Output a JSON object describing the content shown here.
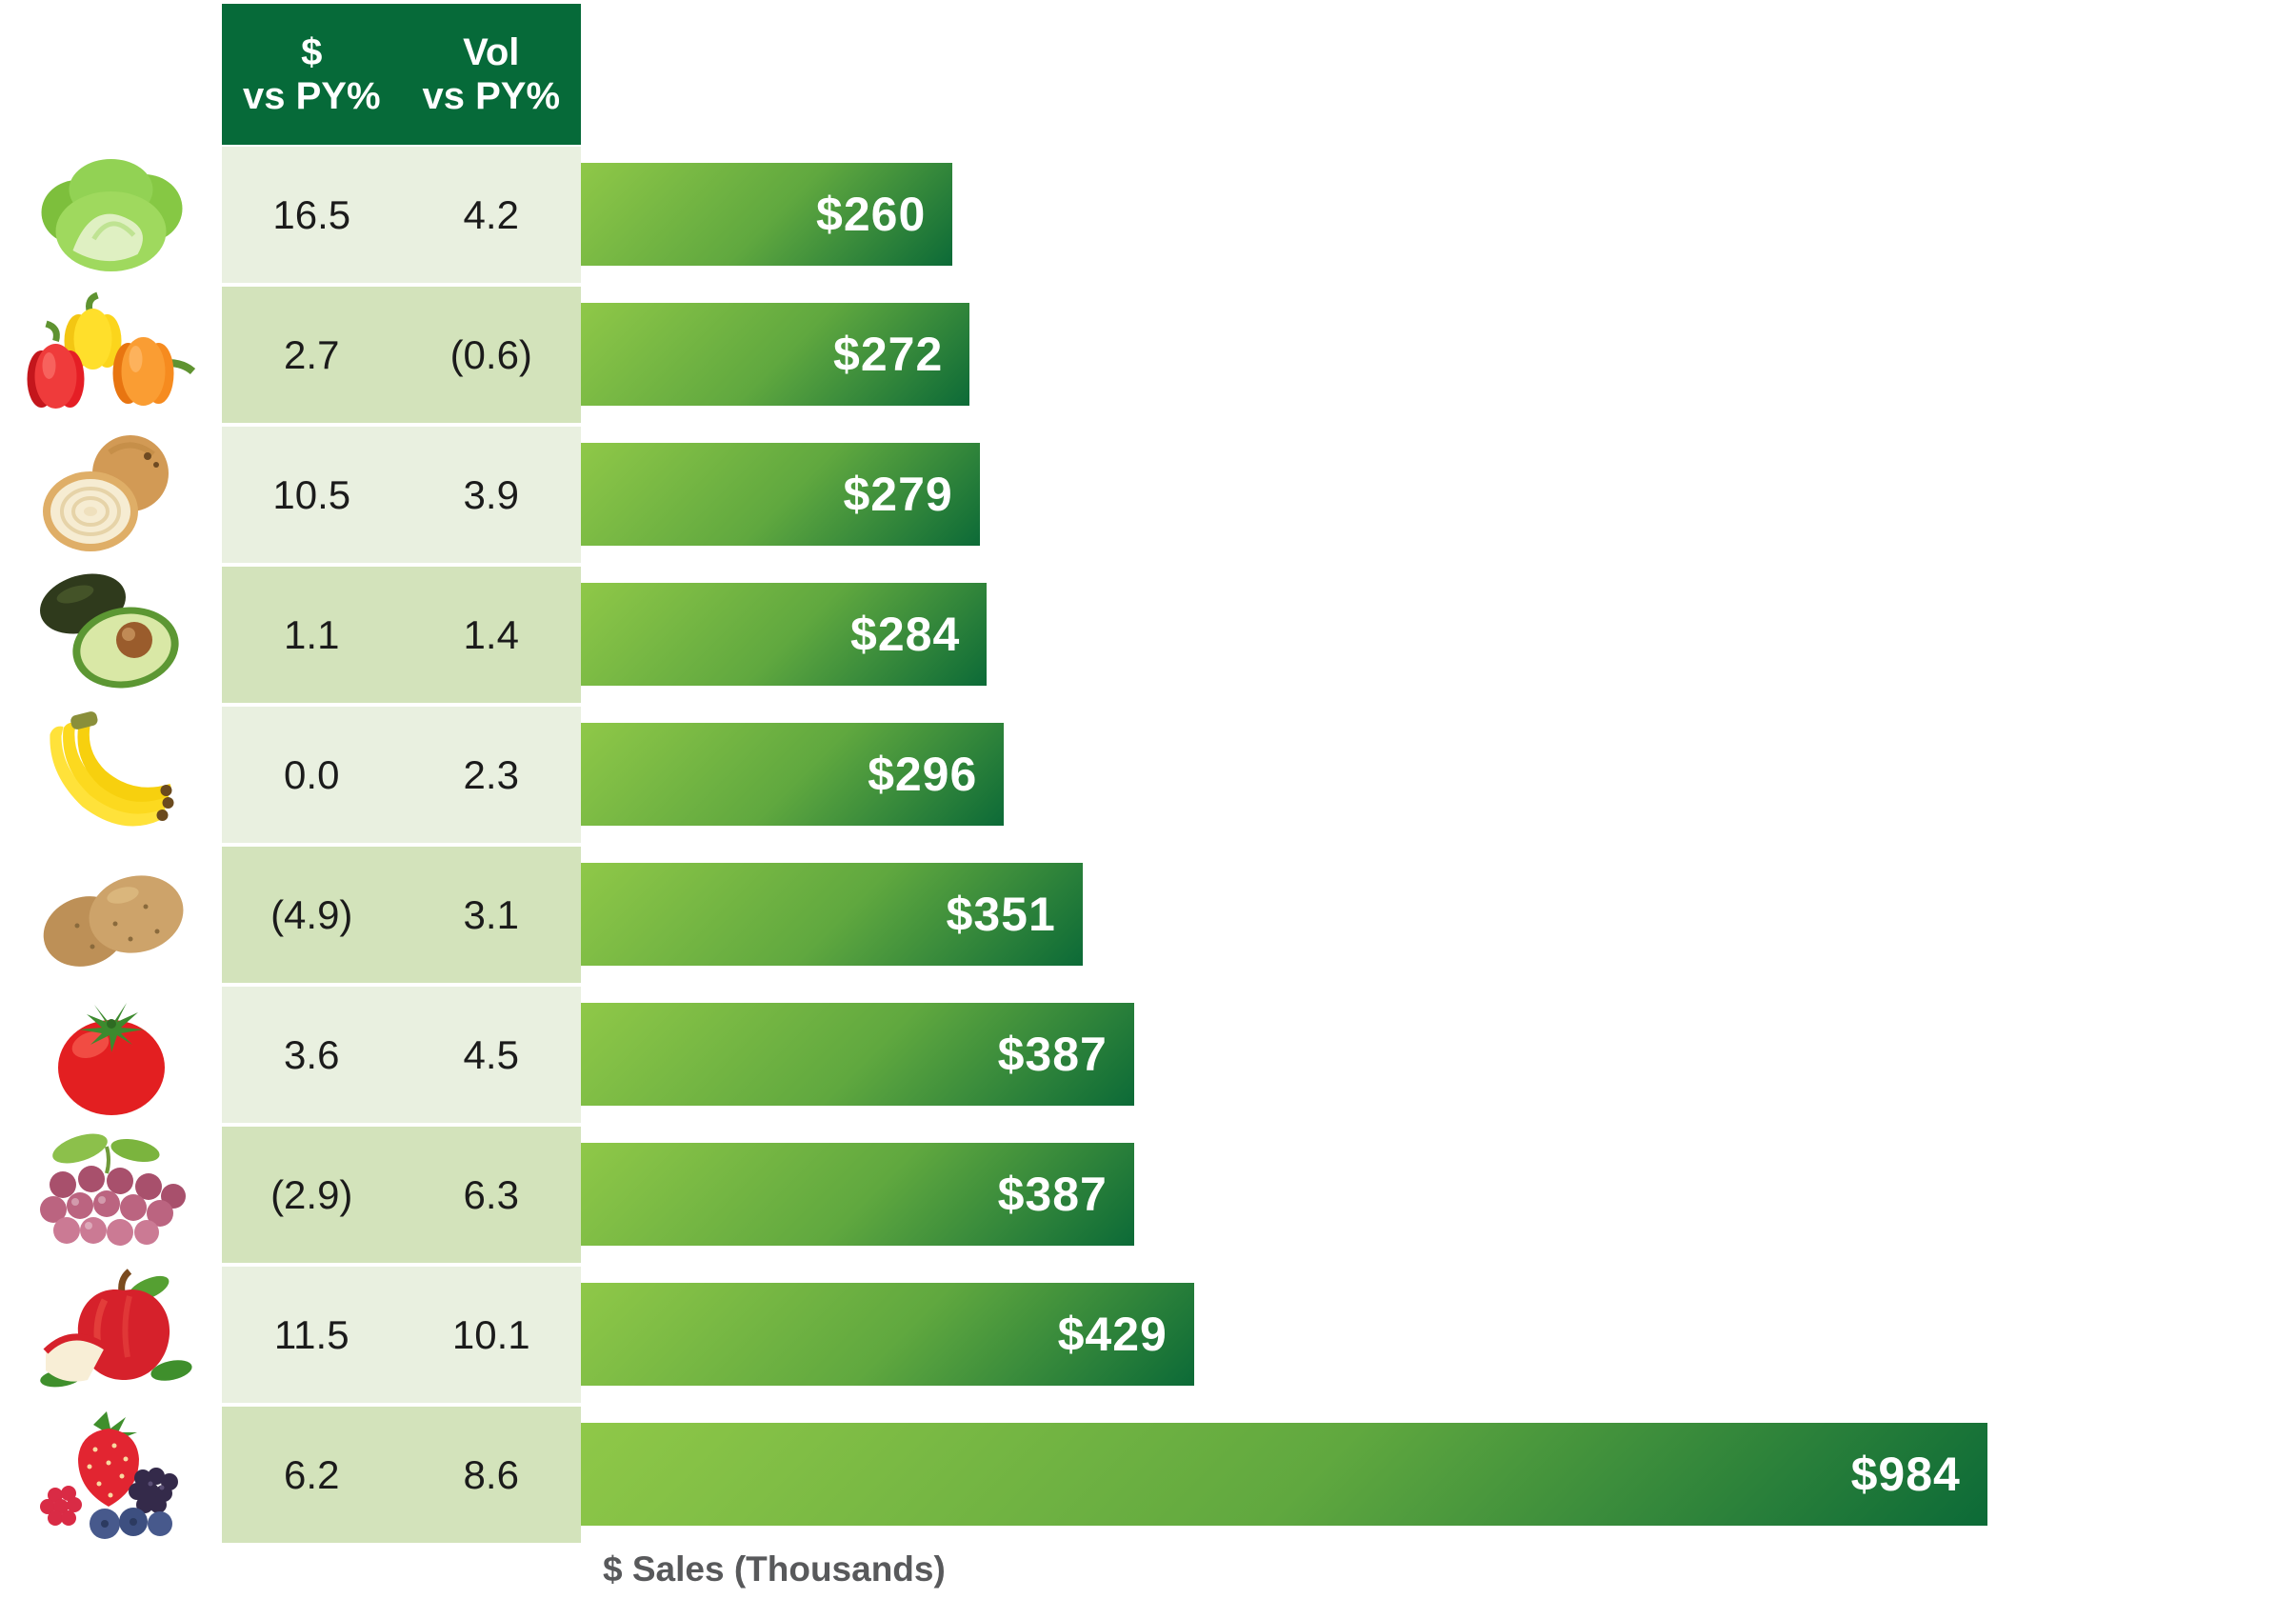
{
  "table": {
    "header": {
      "dollar_col": "$\nvs PY%",
      "vol_col": "Vol\nvs PY%"
    }
  },
  "axis": {
    "xlabel": "$ Sales (Thousands)"
  },
  "rows": [
    {
      "item": "lettuce",
      "icon": "lettuce-icon",
      "dollar_vs_py": "16.5",
      "vol_vs_py": "4.2",
      "sales_label": "$260",
      "sales_value": 260
    },
    {
      "item": "bell-peppers",
      "icon": "bell-peppers-icon",
      "dollar_vs_py": "2.7",
      "vol_vs_py": "(0.6)",
      "sales_label": "$272",
      "sales_value": 272
    },
    {
      "item": "onions",
      "icon": "onion-icon",
      "dollar_vs_py": "10.5",
      "vol_vs_py": "3.9",
      "sales_label": "$279",
      "sales_value": 279
    },
    {
      "item": "avocados",
      "icon": "avocado-icon",
      "dollar_vs_py": "1.1",
      "vol_vs_py": "1.4",
      "sales_label": "$284",
      "sales_value": 284
    },
    {
      "item": "bananas",
      "icon": "banana-icon",
      "dollar_vs_py": "0.0",
      "vol_vs_py": "2.3",
      "sales_label": "$296",
      "sales_value": 296
    },
    {
      "item": "potatoes",
      "icon": "potato-icon",
      "dollar_vs_py": "(4.9)",
      "vol_vs_py": "3.1",
      "sales_label": "$351",
      "sales_value": 351
    },
    {
      "item": "tomatoes",
      "icon": "tomato-icon",
      "dollar_vs_py": "3.6",
      "vol_vs_py": "4.5",
      "sales_label": "$387",
      "sales_value": 387
    },
    {
      "item": "grapes",
      "icon": "grapes-icon",
      "dollar_vs_py": "(2.9)",
      "vol_vs_py": "6.3",
      "sales_label": "$387",
      "sales_value": 387
    },
    {
      "item": "apples",
      "icon": "apple-icon",
      "dollar_vs_py": "11.5",
      "vol_vs_py": "10.1",
      "sales_label": "$429",
      "sales_value": 429
    },
    {
      "item": "berries",
      "icon": "berries-icon",
      "dollar_vs_py": "6.2",
      "vol_vs_py": "8.6",
      "sales_label": "$984",
      "sales_value": 984
    }
  ],
  "chart_data": {
    "type": "bar",
    "orientation": "horizontal",
    "categories": [
      "Lettuce",
      "Bell Peppers",
      "Onions",
      "Avocados",
      "Bananas",
      "Potatoes",
      "Tomatoes",
      "Grapes",
      "Apples",
      "Berries"
    ],
    "series": [
      {
        "name": "$ Sales (Thousands)",
        "values": [
          260,
          272,
          279,
          284,
          296,
          351,
          387,
          387,
          429,
          984
        ]
      },
      {
        "name": "$ vs PY%",
        "values": [
          16.5,
          2.7,
          10.5,
          1.1,
          0.0,
          -4.9,
          3.6,
          -2.9,
          11.5,
          6.2
        ]
      },
      {
        "name": "Vol vs PY%",
        "values": [
          4.2,
          -0.6,
          3.9,
          1.4,
          2.3,
          3.1,
          4.5,
          6.3,
          10.1,
          8.6
        ]
      }
    ],
    "bar_labels": [
      "$260",
      "$272",
      "$279",
      "$284",
      "$296",
      "$351",
      "$387",
      "$387",
      "$429",
      "$984"
    ],
    "xlabel": "$ Sales (Thousands)",
    "xlim": [
      0,
      1200
    ],
    "grid": false,
    "legend": false,
    "negative_format": "parentheses"
  },
  "colors": {
    "header_bg": "#066a39",
    "row_band_light": "#e9f0e0",
    "row_band_dark": "#d3e3bb",
    "bar_gradient_start": "#8fc848",
    "bar_gradient_end": "#0c6a37",
    "bar_label": "#ffffff",
    "axis_label": "#58595b",
    "table_text": "#1b1b1b"
  }
}
